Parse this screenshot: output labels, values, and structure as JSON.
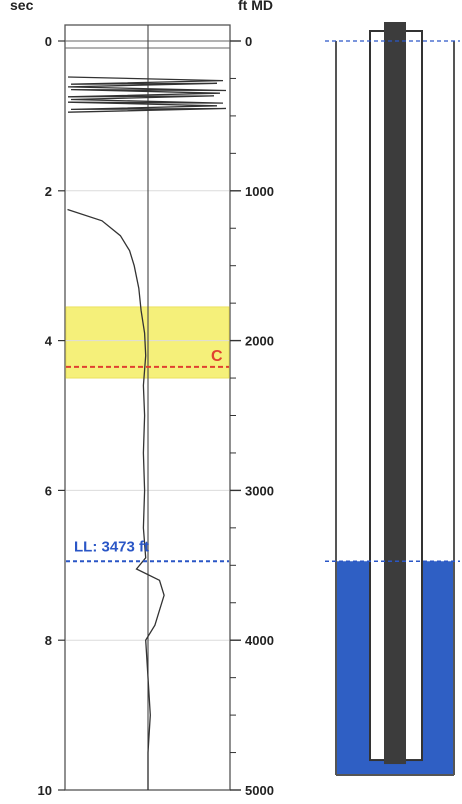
{
  "axes": {
    "left_unit": "sec",
    "right_unit": "ft MD",
    "time_ticks": [
      "0",
      "2",
      "4",
      "6",
      "8",
      "10"
    ],
    "depth_ticks": [
      "0",
      "1000",
      "2000",
      "3000",
      "4000",
      "5000"
    ],
    "time_range": [
      0,
      10
    ],
    "depth_range": [
      0,
      5000
    ]
  },
  "trace": {
    "noise_zone_sec": [
      0.5,
      0.95
    ],
    "points_sec_amp": [
      [
        2.25,
        -0.35
      ],
      [
        2.4,
        -0.2
      ],
      [
        2.6,
        -0.12
      ],
      [
        2.8,
        -0.08
      ],
      [
        3.0,
        -0.06
      ],
      [
        3.3,
        -0.04
      ],
      [
        3.6,
        -0.03
      ],
      [
        3.9,
        -0.015
      ],
      [
        4.2,
        -0.01
      ],
      [
        4.6,
        -0.02
      ],
      [
        5.0,
        -0.015
      ],
      [
        5.5,
        -0.02
      ],
      [
        6.0,
        -0.015
      ],
      [
        6.5,
        -0.02
      ],
      [
        6.9,
        -0.01
      ],
      [
        7.05,
        -0.05
      ],
      [
        7.2,
        0.05
      ],
      [
        7.4,
        0.07
      ],
      [
        7.6,
        0.05
      ],
      [
        7.8,
        0.03
      ],
      [
        8.0,
        -0.01
      ],
      [
        8.5,
        0.0
      ],
      [
        9.0,
        0.01
      ],
      [
        9.5,
        0.0
      ],
      [
        10.0,
        0.0
      ]
    ]
  },
  "zone": {
    "top_sec": 3.55,
    "bottom_sec": 4.5,
    "collar_sec": 4.35,
    "collar_label": "C",
    "fill_color": "#f5f07a",
    "collar_color": "#e04030"
  },
  "liquid_level": {
    "label": "LL: 3473 ft",
    "depth_ft": 3473,
    "color": "#2a56c6"
  },
  "well": {
    "surface_ft": 0,
    "liquid_ft": 3473,
    "pump_ft": 4800,
    "bottom_ft": 4900,
    "fluid_color": "#2f5fc4"
  }
}
